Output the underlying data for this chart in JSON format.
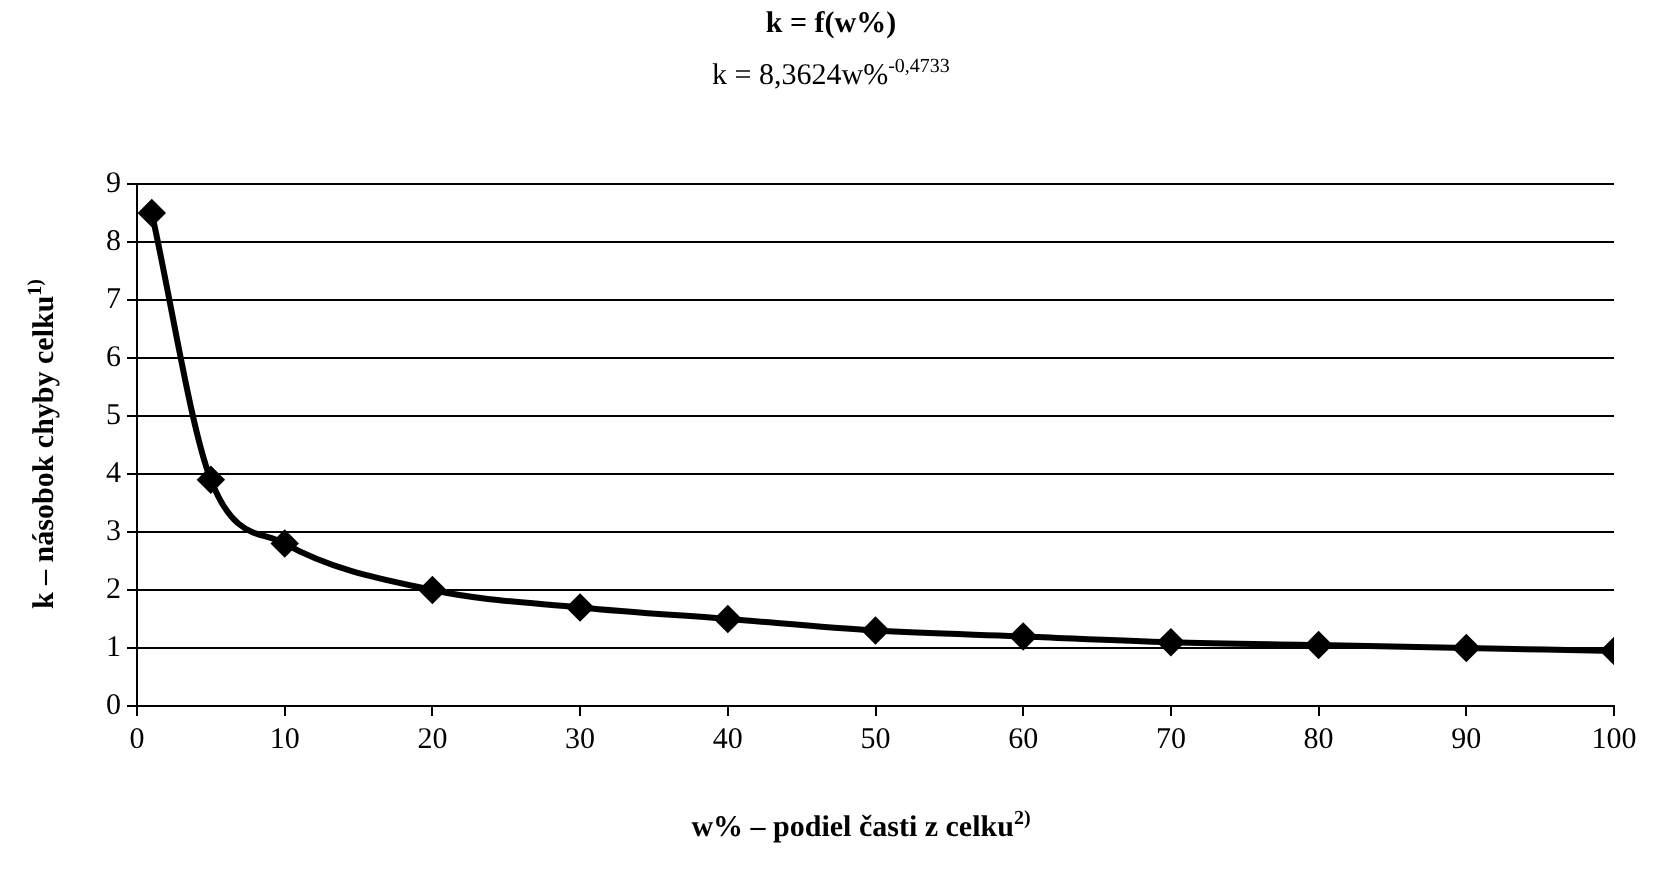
{
  "chart_data": {
    "type": "line",
    "title": "k = f(w%)",
    "subtitle": "k = 8,3624w%$^{-0,4733}$",
    "xlabel": "w% – podiel časti z celku$^{2)}$",
    "ylabel": "k – násobok chyby celku$^{1)}$",
    "x": [
      1,
      5,
      10,
      20,
      30,
      40,
      50,
      60,
      70,
      80,
      90,
      100
    ],
    "series": [
      {
        "color": "#000000",
        "values": [
          8.5,
          3.9,
          2.8,
          2.0,
          1.7,
          1.5,
          1.3,
          1.2,
          1.1,
          1.05,
          1.0,
          0.95
        ]
      }
    ],
    "xlim": [
      0,
      100
    ],
    "xticks": [
      0,
      10,
      20,
      30,
      40,
      50,
      60,
      70,
      80,
      90,
      100
    ],
    "ylim": [
      0,
      9
    ],
    "yticks": [
      0,
      1,
      2,
      3,
      4,
      5,
      6,
      7,
      8,
      9
    ],
    "grid": "y",
    "legend": false,
    "marker": "diamond",
    "line_style": "solid"
  }
}
